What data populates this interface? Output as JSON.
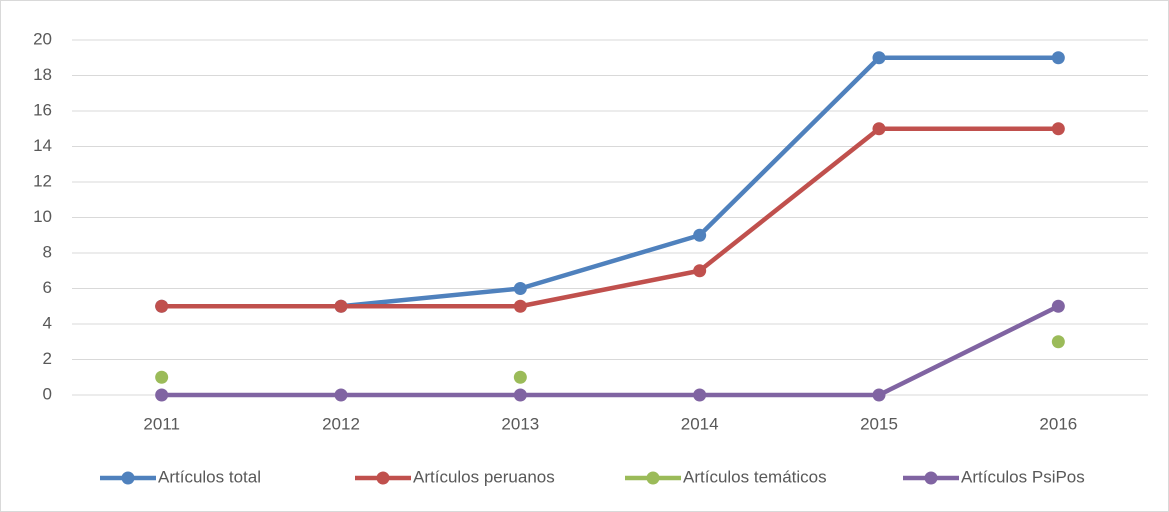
{
  "chart_data": {
    "type": "line",
    "categories": [
      "2011",
      "2012",
      "2013",
      "2014",
      "2015",
      "2016"
    ],
    "series": [
      {
        "name": "Artículos total",
        "color": "#4f81bd",
        "values": [
          5,
          5,
          6,
          9,
          19,
          19
        ]
      },
      {
        "name": "Artículos peruanos",
        "color": "#c0504d",
        "values": [
          5,
          5,
          5,
          7,
          15,
          15
        ]
      },
      {
        "name": "Artículos temáticos",
        "color": "#9bbb59",
        "values": [
          1,
          null,
          1,
          null,
          null,
          3
        ]
      },
      {
        "name": "Artículos PsiPos",
        "color": "#8064a2",
        "values": [
          0,
          0,
          0,
          0,
          0,
          5
        ]
      }
    ],
    "ylim": [
      0,
      20
    ],
    "yticks": [
      0,
      2,
      4,
      6,
      8,
      10,
      12,
      14,
      16,
      18,
      20
    ],
    "grid": true,
    "legend": "bottom"
  }
}
